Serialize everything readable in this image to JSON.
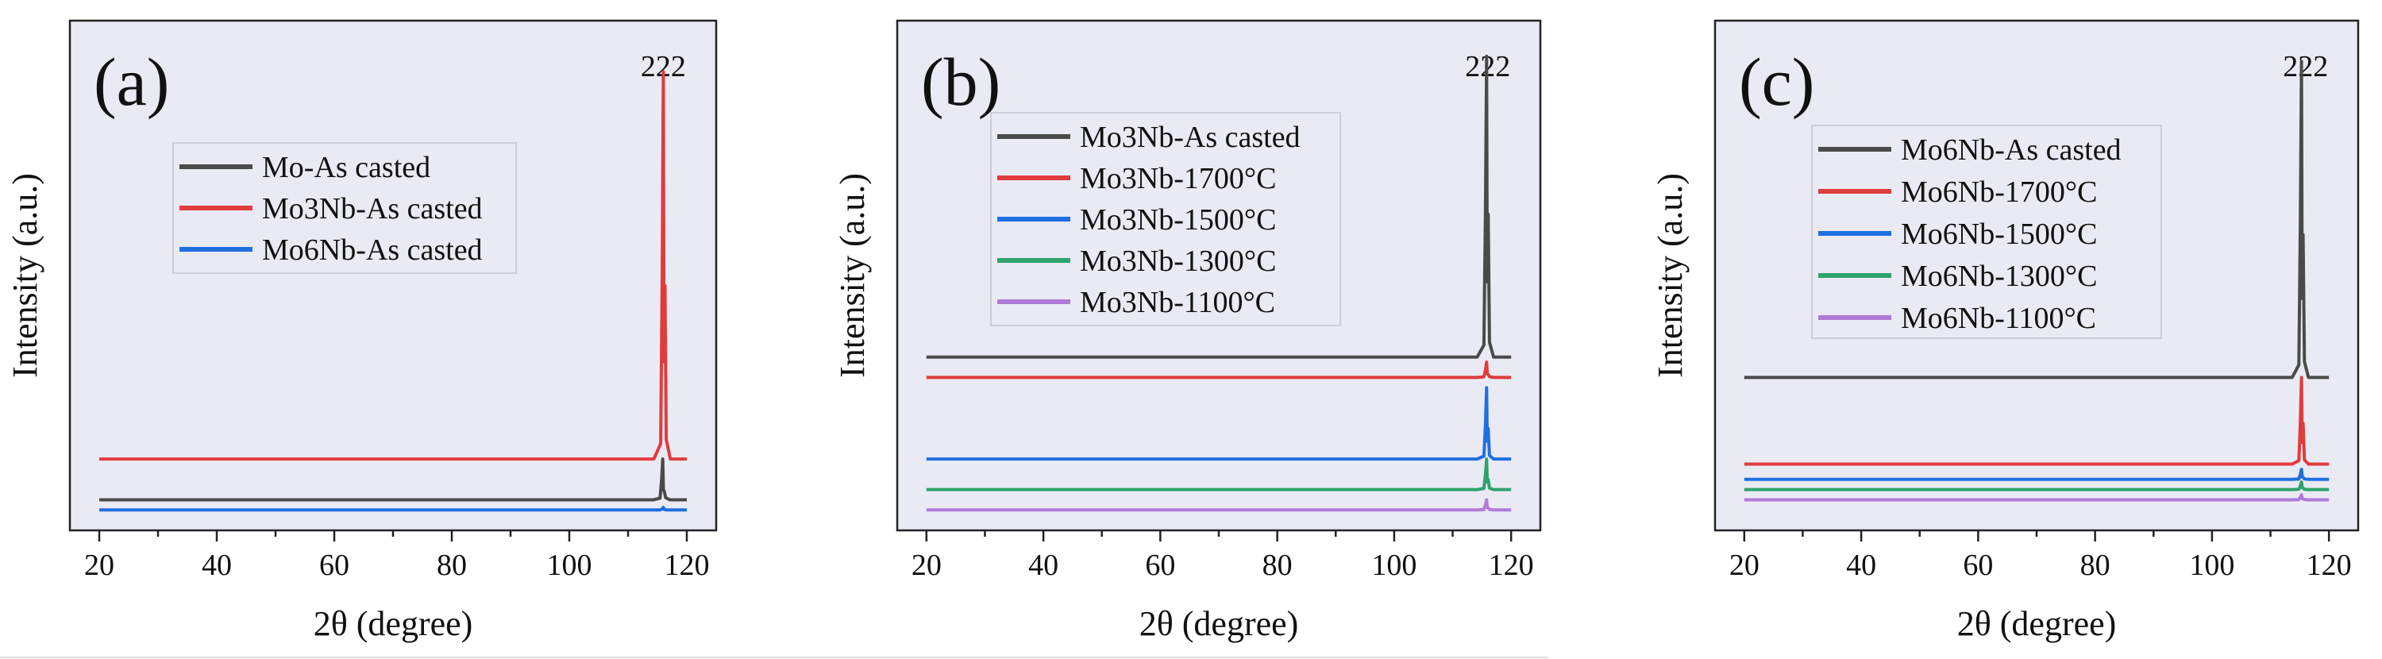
{
  "colors": {
    "black": "#4a4a4a",
    "red": "#e03c3c",
    "blue": "#1f6fe0",
    "green": "#2fa36b",
    "purple": "#b07ad8"
  },
  "chart_data": [
    {
      "type": "line",
      "panel_label": "(a)",
      "xlabel": "2θ (degree)",
      "ylabel": "Intensity (a.u.)",
      "xlim": [
        15,
        125
      ],
      "ylim": [
        0,
        100
      ],
      "xticks": [
        20,
        40,
        60,
        80,
        100,
        120
      ],
      "peak_annotation": {
        "text": "222",
        "x": 116
      },
      "legend_position": "upper-left",
      "series": [
        {
          "name": "Mo-As casted",
          "color": "black",
          "baseline": 6,
          "peak_x": 115.9,
          "peak_height": 8,
          "shoulder_height": 0
        },
        {
          "name": "Mo3Nb-As casted",
          "color": "red",
          "baseline": 14,
          "peak_x": 116.0,
          "peak_height": 76,
          "shoulder_height": 34
        },
        {
          "name": "Mo6Nb-As casted",
          "color": "blue",
          "baseline": 4,
          "peak_x": 116.0,
          "peak_height": 0.5,
          "shoulder_height": 0
        }
      ]
    },
    {
      "type": "line",
      "panel_label": "(b)",
      "xlabel": "2θ (degree)",
      "ylabel": "Intensity (a.u.)",
      "xlim": [
        15,
        125
      ],
      "ylim": [
        0,
        100
      ],
      "xticks": [
        20,
        40,
        60,
        80,
        100,
        120
      ],
      "peak_annotation": {
        "text": "222",
        "x": 116
      },
      "legend_position": "upper-left",
      "series": [
        {
          "name": "Mo3Nb-As casted",
          "color": "black",
          "baseline": 34,
          "peak_x": 115.8,
          "peak_height": 59,
          "shoulder_height": 28
        },
        {
          "name": "Mo3Nb-1700°C",
          "color": "red",
          "baseline": 30,
          "peak_x": 115.8,
          "peak_height": 3,
          "shoulder_height": 0
        },
        {
          "name": "Mo3Nb-1500°C",
          "color": "blue",
          "baseline": 14,
          "peak_x": 115.8,
          "peak_height": 14,
          "shoulder_height": 6
        },
        {
          "name": "Mo3Nb-1300°C",
          "color": "green",
          "baseline": 8,
          "peak_x": 115.8,
          "peak_height": 6,
          "shoulder_height": 2
        },
        {
          "name": "Mo3Nb-1100°C",
          "color": "purple",
          "baseline": 4,
          "peak_x": 115.8,
          "peak_height": 2,
          "shoulder_height": 0
        }
      ]
    },
    {
      "type": "line",
      "panel_label": "(c)",
      "xlabel": "2θ (degree)",
      "ylabel": "Intensity (a.u.)",
      "xlim": [
        15,
        125
      ],
      "ylim": [
        0,
        100
      ],
      "xticks": [
        20,
        40,
        60,
        80,
        100,
        120
      ],
      "peak_annotation": {
        "text": "222",
        "x": 116
      },
      "legend_position": "upper-left",
      "series": [
        {
          "name": "Mo6Nb-As casted",
          "color": "black",
          "baseline": 30,
          "peak_x": 115.3,
          "peak_height": 62,
          "shoulder_height": 28
        },
        {
          "name": "Mo6Nb-1700°C",
          "color": "red",
          "baseline": 13,
          "peak_x": 115.3,
          "peak_height": 17,
          "shoulder_height": 8
        },
        {
          "name": "Mo6Nb-1500°C",
          "color": "blue",
          "baseline": 10,
          "peak_x": 115.3,
          "peak_height": 2,
          "shoulder_height": 0
        },
        {
          "name": "Mo6Nb-1300°C",
          "color": "green",
          "baseline": 8,
          "peak_x": 115.3,
          "peak_height": 1.5,
          "shoulder_height": 0
        },
        {
          "name": "Mo6Nb-1100°C",
          "color": "purple",
          "baseline": 6,
          "peak_x": 115.3,
          "peak_height": 1,
          "shoulder_height": 0
        }
      ]
    }
  ]
}
